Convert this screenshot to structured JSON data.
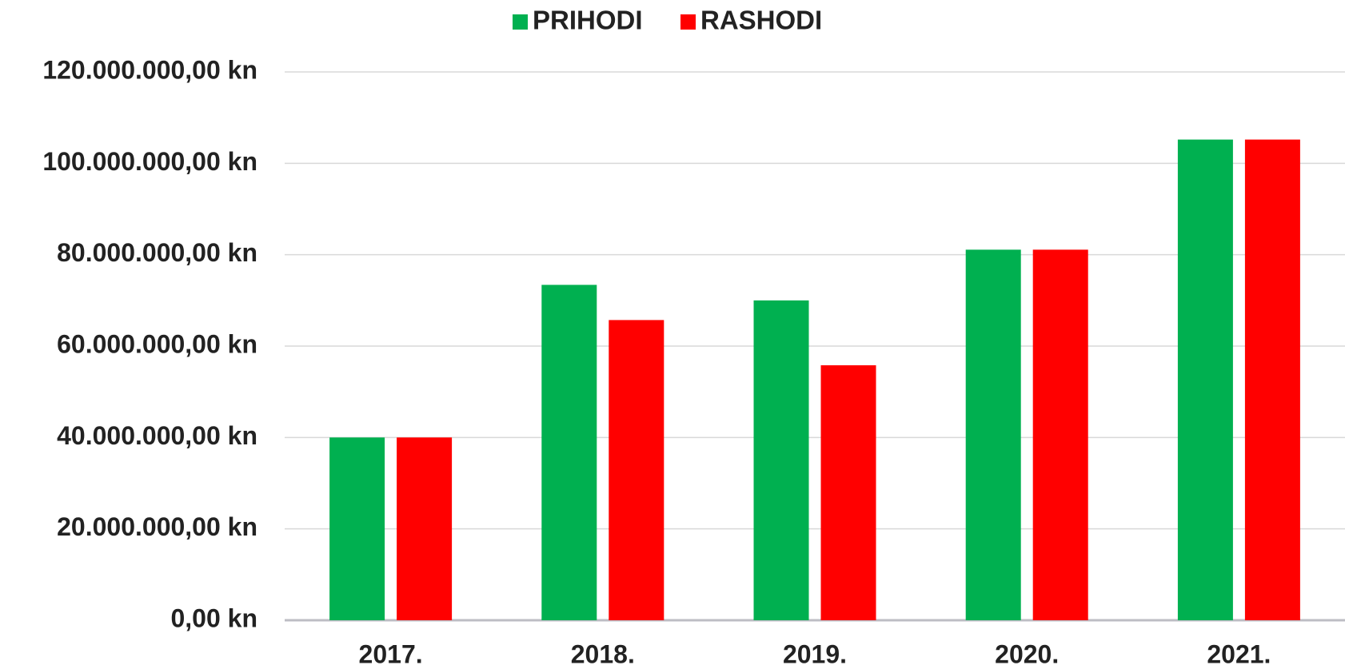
{
  "chart_data": {
    "type": "bar",
    "categories": [
      "2017.",
      "2018.",
      "2019.",
      "2020.",
      "2021."
    ],
    "series": [
      {
        "name": "PRIHODI",
        "color": "#00b050",
        "values": [
          40000000,
          73400000,
          70000000,
          81100000,
          105200000
        ]
      },
      {
        "name": "RASHODI",
        "color": "#ff0000",
        "values": [
          40000000,
          65700000,
          55800000,
          81100000,
          105200000
        ]
      }
    ],
    "ylim": [
      0,
      120000000
    ],
    "yticks": [
      {
        "value": 0,
        "label": "0,00 kn"
      },
      {
        "value": 20000000,
        "label": "20.000.000,00 kn"
      },
      {
        "value": 40000000,
        "label": "40.000.000,00 kn"
      },
      {
        "value": 60000000,
        "label": "60.000.000,00 kn"
      },
      {
        "value": 80000000,
        "label": "80.000.000,00 kn"
      },
      {
        "value": 100000000,
        "label": "100.000.000,00 kn"
      },
      {
        "value": 120000000,
        "label": "120.000.000,00 kn"
      }
    ],
    "grid": true,
    "legend": "top"
  }
}
